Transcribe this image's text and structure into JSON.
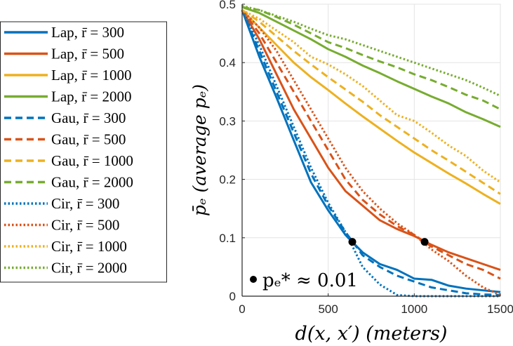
{
  "chart_data": {
    "type": "line",
    "title": "",
    "xlabel": "d(x, x′) (meters)",
    "ylabel": "p̄ₑ (average pₑ)",
    "xlim": [
      0,
      1500
    ],
    "ylim": [
      0,
      0.5
    ],
    "grid": true,
    "legend_placement": "outside-left",
    "x_ticks": [
      "0",
      "500",
      "1000",
      "1500"
    ],
    "y_ticks": [
      "0",
      "0.1",
      "0.2",
      "0.3",
      "0.4",
      "0.5"
    ],
    "x": [
      0,
      100,
      200,
      300,
      400,
      500,
      600,
      700,
      800,
      900,
      1000,
      1100,
      1200,
      1300,
      1400,
      1500
    ],
    "series": [
      {
        "name": "Lap, r̄ = 300",
        "color": "#0072BD",
        "style": "solid",
        "values": [
          0.49,
          0.41,
          0.34,
          0.267,
          0.195,
          0.147,
          0.105,
          0.075,
          0.055,
          0.045,
          0.03,
          0.028,
          0.018,
          0.013,
          0.01,
          0.007
        ]
      },
      {
        "name": "Lap, r̄ = 500",
        "color": "#D95319",
        "style": "solid",
        "values": [
          0.49,
          0.44,
          0.38,
          0.32,
          0.27,
          0.22,
          0.18,
          0.155,
          0.13,
          0.115,
          0.103,
          0.088,
          0.075,
          0.065,
          0.055,
          0.045
        ]
      },
      {
        "name": "Lap, r̄ = 1000",
        "color": "#EDB120",
        "style": "solid",
        "values": [
          0.49,
          0.46,
          0.43,
          0.4,
          0.375,
          0.353,
          0.33,
          0.308,
          0.287,
          0.266,
          0.246,
          0.228,
          0.21,
          0.193,
          0.175,
          0.158
        ]
      },
      {
        "name": "Lap, r̄ = 2000",
        "color": "#77AC30",
        "style": "solid",
        "values": [
          0.495,
          0.485,
          0.47,
          0.455,
          0.44,
          0.423,
          0.41,
          0.395,
          0.382,
          0.368,
          0.355,
          0.342,
          0.33,
          0.315,
          0.303,
          0.29
        ]
      },
      {
        "name": "Gau, r̄ = 300",
        "color": "#0072BD",
        "style": "dashed",
        "values": [
          0.49,
          0.42,
          0.35,
          0.28,
          0.21,
          0.155,
          0.11,
          0.07,
          0.05,
          0.035,
          0.025,
          0.015,
          0.01,
          0.005,
          0.003,
          0.002
        ]
      },
      {
        "name": "Gau, r̄ = 500",
        "color": "#D95319",
        "style": "dashed",
        "values": [
          0.49,
          0.45,
          0.4,
          0.35,
          0.3,
          0.25,
          0.2,
          0.165,
          0.14,
          0.12,
          0.105,
          0.085,
          0.07,
          0.055,
          0.045,
          0.03
        ]
      },
      {
        "name": "Gau, r̄ = 1000",
        "color": "#EDB120",
        "style": "dashed",
        "values": [
          0.49,
          0.47,
          0.445,
          0.42,
          0.397,
          0.375,
          0.354,
          0.333,
          0.31,
          0.29,
          0.27,
          0.25,
          0.232,
          0.213,
          0.194,
          0.175
        ]
      },
      {
        "name": "Gau, r̄ = 2000",
        "color": "#77AC30",
        "style": "dashed",
        "values": [
          0.495,
          0.49,
          0.478,
          0.465,
          0.45,
          0.435,
          0.425,
          0.413,
          0.402,
          0.392,
          0.38,
          0.37,
          0.358,
          0.345,
          0.335,
          0.32
        ]
      },
      {
        "name": "Cir, r̄ = 300",
        "color": "#0072BD",
        "style": "dotted",
        "values": [
          0.49,
          0.43,
          0.36,
          0.29,
          0.22,
          0.16,
          0.11,
          0.05,
          0.02,
          0.002,
          0,
          0,
          0,
          0,
          0,
          0
        ]
      },
      {
        "name": "Cir, r̄ = 500",
        "color": "#D95319",
        "style": "dotted",
        "values": [
          0.49,
          0.46,
          0.42,
          0.37,
          0.32,
          0.27,
          0.22,
          0.18,
          0.15,
          0.125,
          0.105,
          0.08,
          0.06,
          0.035,
          0.015,
          0.002
        ]
      },
      {
        "name": "Cir, r̄ = 1000",
        "color": "#EDB120",
        "style": "dotted",
        "values": [
          0.49,
          0.475,
          0.455,
          0.435,
          0.41,
          0.397,
          0.38,
          0.36,
          0.335,
          0.31,
          0.3,
          0.28,
          0.258,
          0.24,
          0.215,
          0.195
        ]
      },
      {
        "name": "Cir, r̄ = 2000",
        "color": "#77AC30",
        "style": "dotted",
        "values": [
          0.497,
          0.49,
          0.48,
          0.47,
          0.458,
          0.447,
          0.44,
          0.43,
          0.42,
          0.41,
          0.4,
          0.39,
          0.38,
          0.37,
          0.357,
          0.343
        ]
      }
    ],
    "markers": [
      {
        "x": 640,
        "y": 0.093
      },
      {
        "x": 1060,
        "y": 0.093
      }
    ],
    "annotation": "pₑ* ≈ 0.01"
  }
}
